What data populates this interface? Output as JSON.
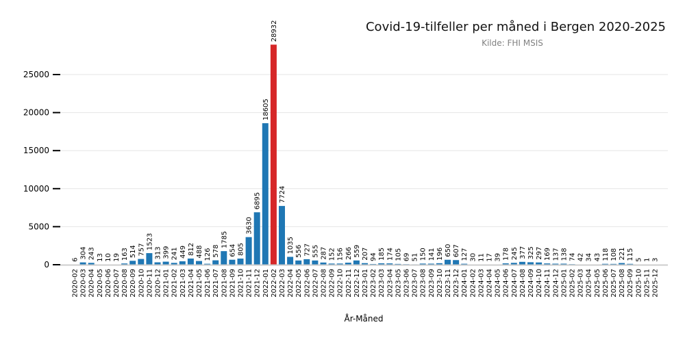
{
  "chart_data": {
    "type": "bar",
    "title": "Covid-19-tilfeller per måned i Bergen 2020-2025",
    "subtitle": "Kilde: FHI MSIS",
    "xlabel": "År-Måned",
    "ylabel": "",
    "ylim": [
      0,
      30000
    ],
    "yticks": [
      0,
      5000,
      10000,
      15000,
      20000,
      25000
    ],
    "grid": true,
    "colors": {
      "default": "#1f77b4",
      "highlight": "#d62728"
    },
    "highlight_category": "2022-02",
    "categories": [
      "2020-02",
      "2020-03",
      "2020-04",
      "2020-05",
      "2020-06",
      "2020-07",
      "2020-08",
      "2020-09",
      "2020-10",
      "2020-11",
      "2020-12",
      "2021-01",
      "2021-02",
      "2021-03",
      "2021-04",
      "2021-05",
      "2021-06",
      "2021-07",
      "2021-08",
      "2021-09",
      "2021-10",
      "2021-11",
      "2021-12",
      "2022-01",
      "2022-02",
      "2022-03",
      "2022-04",
      "2022-05",
      "2022-06",
      "2022-07",
      "2022-08",
      "2022-09",
      "2022-10",
      "2022-11",
      "2022-12",
      "2023-01",
      "2023-02",
      "2023-03",
      "2023-04",
      "2023-05",
      "2023-06",
      "2023-07",
      "2023-08",
      "2023-09",
      "2023-10",
      "2023-11",
      "2023-12",
      "2024-01",
      "2024-02",
      "2024-03",
      "2024-04",
      "2024-05",
      "2024-06",
      "2024-07",
      "2024-08",
      "2024-09",
      "2024-10",
      "2024-11",
      "2024-12",
      "2025-01",
      "2025-02",
      "2025-03",
      "2025-04",
      "2025-05",
      "2025-06",
      "2025-07",
      "2025-08",
      "2025-09",
      "2025-10",
      "2025-11",
      "2025-12"
    ],
    "values": [
      6,
      304,
      243,
      13,
      10,
      19,
      163,
      514,
      757,
      1523,
      313,
      399,
      241,
      449,
      812,
      488,
      126,
      578,
      1785,
      654,
      805,
      3630,
      6895,
      18605,
      28932,
      7724,
      1035,
      556,
      727,
      555,
      287,
      152,
      156,
      266,
      559,
      207,
      94,
      185,
      174,
      105,
      69,
      51,
      150,
      141,
      196,
      650,
      607,
      127,
      30,
      11,
      17,
      39,
      178,
      245,
      377,
      325,
      297,
      169,
      137,
      138,
      74,
      42,
      34,
      43,
      118,
      108,
      221,
      115,
      5,
      1,
      3
    ]
  }
}
